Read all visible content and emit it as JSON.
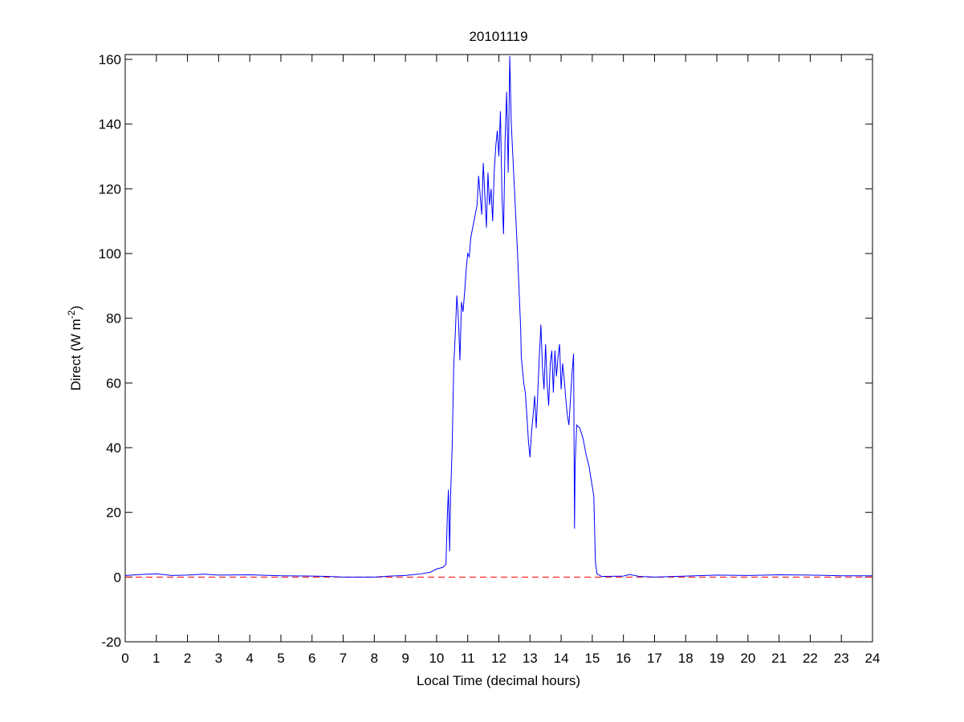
{
  "chart_data": {
    "type": "line",
    "title": "20101119",
    "x_label": "Local Time (decimal hours)",
    "y_label": [
      "Direct (W m",
      "-2",
      ")"
    ],
    "x": [
      0,
      0.5,
      1,
      1.5,
      2,
      2.5,
      3,
      4,
      5,
      6,
      6.5,
      7,
      8,
      8.5,
      9,
      9.5,
      9.8,
      10,
      10.2,
      10.3,
      10.35,
      10.38,
      10.42,
      10.45,
      10.5,
      10.55,
      10.6,
      10.65,
      10.7,
      10.75,
      10.8,
      10.85,
      10.9,
      10.95,
      11,
      11.05,
      11.1,
      11.2,
      11.3,
      11.35,
      11.4,
      11.45,
      11.5,
      11.55,
      11.6,
      11.65,
      11.7,
      11.75,
      11.8,
      11.85,
      11.9,
      11.95,
      12,
      12.05,
      12.1,
      12.15,
      12.2,
      12.25,
      12.3,
      12.35,
      12.4,
      12.5,
      12.6,
      12.7,
      12.72,
      12.8,
      12.85,
      12.9,
      12.95,
      13,
      13.05,
      13.1,
      13.15,
      13.2,
      13.3,
      13.35,
      13.4,
      13.45,
      13.5,
      13.55,
      13.6,
      13.65,
      13.7,
      13.75,
      13.8,
      13.85,
      13.9,
      13.95,
      14,
      14.05,
      14.1,
      14.15,
      14.2,
      14.25,
      14.3,
      14.35,
      14.4,
      14.43,
      14.45,
      14.5,
      14.6,
      14.7,
      14.8,
      14.9,
      15,
      15.05,
      15.1,
      15.15,
      15.3,
      16,
      16.2,
      16.5,
      17,
      18,
      19,
      20,
      21,
      22,
      23,
      24
    ],
    "series": [
      {
        "color": "#0000ff",
        "values": [
          0.5,
          0.8,
          1,
          0.5,
          0.6,
          0.9,
          0.6,
          0.7,
          0.4,
          0.3,
          0.2,
          0,
          0,
          0.3,
          0.5,
          1,
          1.5,
          2.5,
          3,
          4,
          20,
          27,
          8,
          25,
          40,
          65,
          75,
          87,
          80,
          67,
          85,
          82,
          88,
          95,
          100,
          99,
          105,
          110,
          115,
          124,
          118,
          112,
          128,
          118,
          108,
          125,
          115,
          120,
          110,
          125,
          133,
          138,
          130,
          144,
          118,
          106,
          135,
          150,
          125,
          161,
          140,
          120,
          100,
          77,
          68,
          60,
          57,
          50,
          42,
          37,
          45,
          50,
          56,
          46,
          68,
          78,
          65,
          58,
          72,
          60,
          53,
          66,
          70,
          57,
          70,
          62,
          68,
          72,
          58,
          66,
          61,
          55,
          50,
          47,
          55,
          63,
          69,
          15,
          35,
          47,
          46,
          43,
          38,
          34,
          28,
          25,
          5,
          1,
          0.2,
          0.3,
          0.8,
          0.2,
          0,
          0.3,
          0.6,
          0.5,
          0.7,
          0.6,
          0.4,
          0.4
        ]
      }
    ],
    "reference_line": {
      "value": 0,
      "color": "#ff0000",
      "style": "dashed"
    },
    "xlim": [
      0,
      24
    ],
    "xticks": [
      0,
      1,
      2,
      3,
      4,
      5,
      6,
      7,
      8,
      9,
      10,
      11,
      12,
      13,
      14,
      15,
      16,
      17,
      18,
      19,
      20,
      21,
      22,
      23,
      24
    ],
    "ylim": [
      -20,
      161.5
    ],
    "yticks": [
      -20,
      0,
      20,
      40,
      60,
      80,
      100,
      120,
      140,
      160
    ],
    "grid": false
  }
}
